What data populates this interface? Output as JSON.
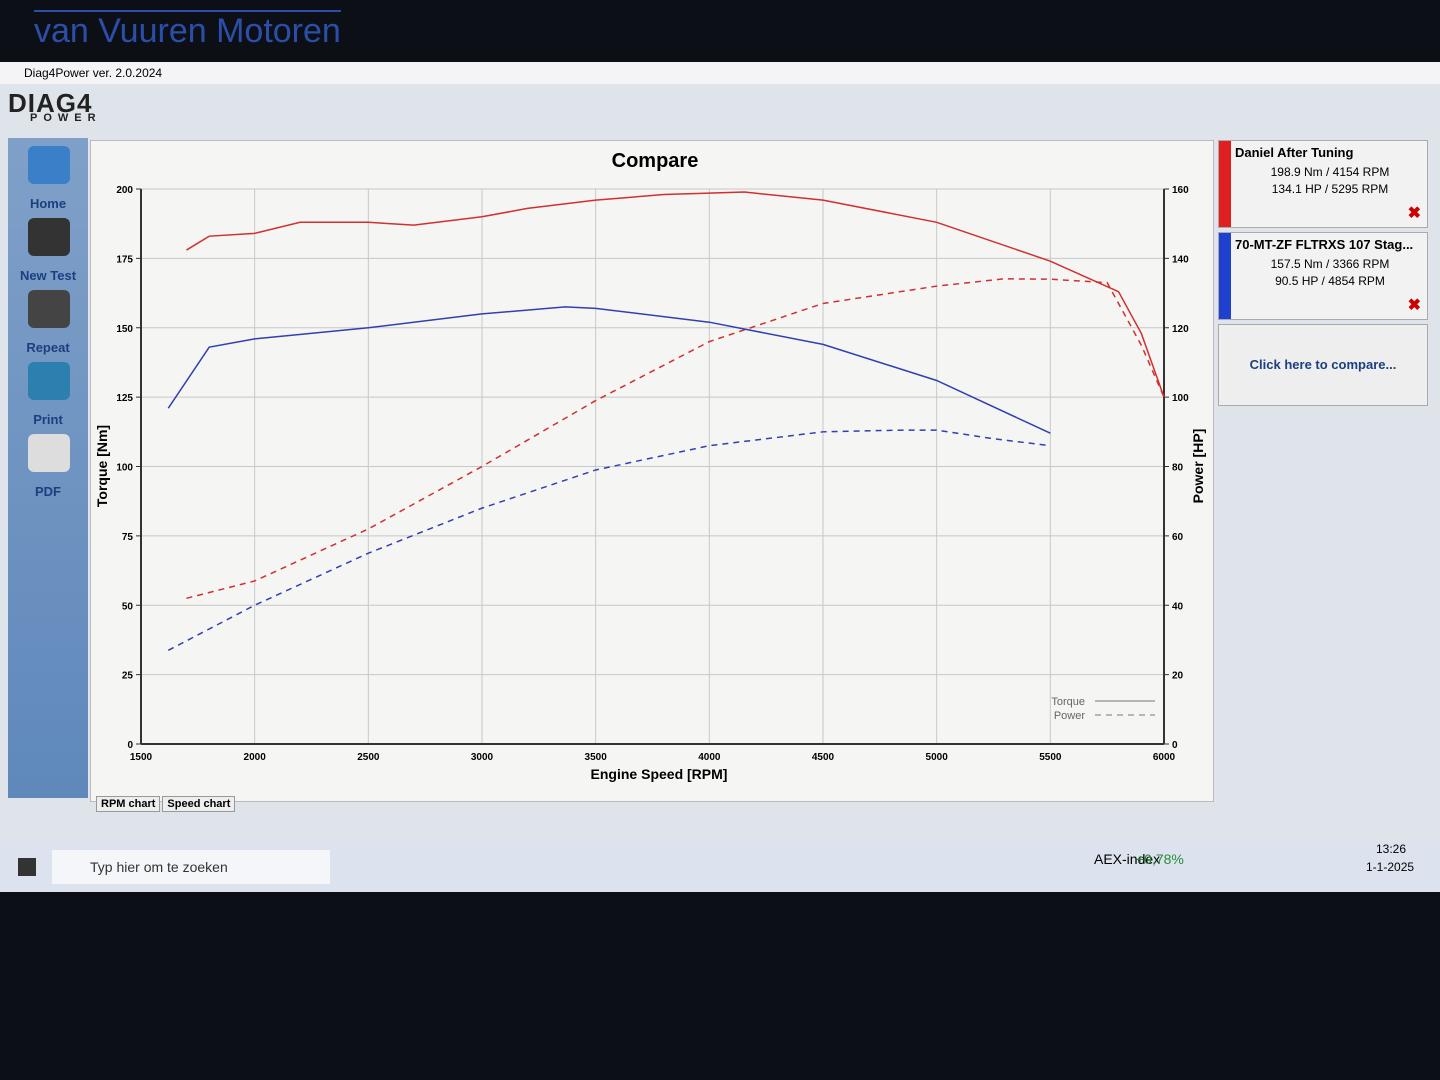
{
  "banner": "van Vuuren Motoren",
  "window": {
    "title": "Diag4Power ver. 2.0.2024",
    "logo_top": "DIAG4",
    "logo_bottom": "POWER"
  },
  "sidebar": [
    "Home",
    "New Test",
    "Repeat",
    "Print",
    "PDF"
  ],
  "tabs": [
    "RPM chart",
    "Speed chart"
  ],
  "runs": [
    {
      "name": "Daniel After Tuning",
      "color": "#e02020",
      "lines": [
        "198.9 Nm / 4154 RPM",
        "134.1 HP / 5295 RPM"
      ]
    },
    {
      "name": "70-MT-ZF FLTRXS 107 Stag...",
      "color": "#2040d0",
      "lines": [
        "157.5 Nm / 3366 RPM",
        "90.5 HP / 4854 RPM"
      ]
    }
  ],
  "compare": "Click here to compare...",
  "taskbar": {
    "search": "Typ hier om te zoeken",
    "ticker": "AEX-index",
    "change": "+0,78%",
    "time": "13:26",
    "date": "1-1-2025"
  },
  "chart_data": {
    "type": "line",
    "title": "Compare",
    "x_label": "Engine Speed [RPM]",
    "y_label": "Torque [Nm]",
    "y2_label": "Power [HP]",
    "xlim": [
      1500,
      6000
    ],
    "xticks": [
      1500,
      2000,
      2500,
      3000,
      3500,
      4000,
      4500,
      5000,
      5500,
      6000
    ],
    "ylim": [
      0,
      200
    ],
    "yticks": [
      0,
      25,
      50,
      75,
      100,
      125,
      150,
      175,
      200
    ],
    "y2lim": [
      0,
      160
    ],
    "y2ticks": [
      0,
      20,
      40,
      60,
      80,
      100,
      120,
      140,
      160
    ],
    "grid": true,
    "legend": [
      {
        "label": "Torque",
        "dashed": false
      },
      {
        "label": "Power",
        "dashed": true
      }
    ],
    "series": [
      {
        "color": "#d03030",
        "dashed": false,
        "x": [
          1700,
          1800,
          2000,
          2200,
          2500,
          2700,
          3000,
          3200,
          3500,
          3800,
          4000,
          4154,
          4500,
          5000,
          5500,
          5800,
          5900,
          6000
        ],
        "values": [
          178,
          183,
          184,
          188,
          188,
          187,
          190,
          193,
          196,
          198,
          198.5,
          198.9,
          196,
          188,
          174,
          163,
          148,
          125
        ]
      },
      {
        "color": "#d03030",
        "dashed": true,
        "axis": "y2",
        "x": [
          1700,
          2000,
          2500,
          3000,
          3500,
          4000,
          4500,
          5000,
          5295,
          5500,
          5750,
          5900,
          6000
        ],
        "values": [
          42,
          47,
          62,
          80,
          99,
          116,
          127,
          132,
          134.1,
          134,
          133,
          115,
          100
        ]
      },
      {
        "color": "#3040b0",
        "dashed": false,
        "x": [
          1620,
          1800,
          2000,
          2500,
          3000,
          3366,
          3500,
          4000,
          4500,
          5000,
          5500
        ],
        "values": [
          121,
          143,
          146,
          150,
          155,
          157.5,
          157,
          152,
          144,
          131,
          112
        ]
      },
      {
        "color": "#3040b0",
        "dashed": true,
        "axis": "y2",
        "x": [
          1620,
          2000,
          2500,
          3000,
          3500,
          4000,
          4500,
          4854,
          5000,
          5250,
          5500
        ],
        "values": [
          27,
          40,
          55,
          68,
          79,
          86,
          90,
          90.5,
          90.5,
          88,
          86
        ]
      }
    ]
  }
}
